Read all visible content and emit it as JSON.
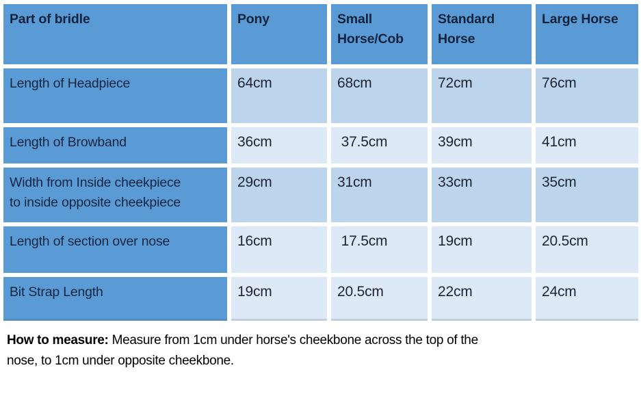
{
  "chart_data": {
    "type": "table",
    "columns": [
      "Part of bridle",
      "Pony",
      "Small Horse/Cob",
      "Standard Horse",
      "Large Horse"
    ],
    "rows": [
      {
        "label": "Length of Headpiece",
        "values": [
          "64cm",
          "68cm",
          "72cm",
          "76cm"
        ]
      },
      {
        "label": "Length of Browband",
        "values": [
          "36cm",
          " 37.5cm",
          "39cm",
          "41cm"
        ]
      },
      {
        "label": "Width from Inside cheekpiece\nto inside opposite cheekpiece",
        "values": [
          "29cm",
          "31cm",
          "33cm",
          "35cm"
        ]
      },
      {
        "label": "Length of section over nose",
        "values": [
          "16cm",
          " 17.5cm",
          "19cm",
          "20.5cm"
        ]
      },
      {
        "label": "Bit Strap Length",
        "values": [
          "19cm",
          "20.5cm",
          "22cm",
          "24cm"
        ]
      }
    ],
    "layout": {
      "header_fill": "#5b9bd5",
      "label_column_fill": "#5b9bd5",
      "band_dark_fill": "#bdd5ec",
      "band_light_fill": "#dde9f6",
      "header_text_color": "#12233e",
      "value_text_color": "#1d2534",
      "grid_color": "#ffffff"
    }
  },
  "footer": {
    "bold_label": "How to measure:",
    "text": " Measure from 1cm under horse's cheekbone across the top of the\nnose, to 1cm under opposite cheekbone."
  }
}
